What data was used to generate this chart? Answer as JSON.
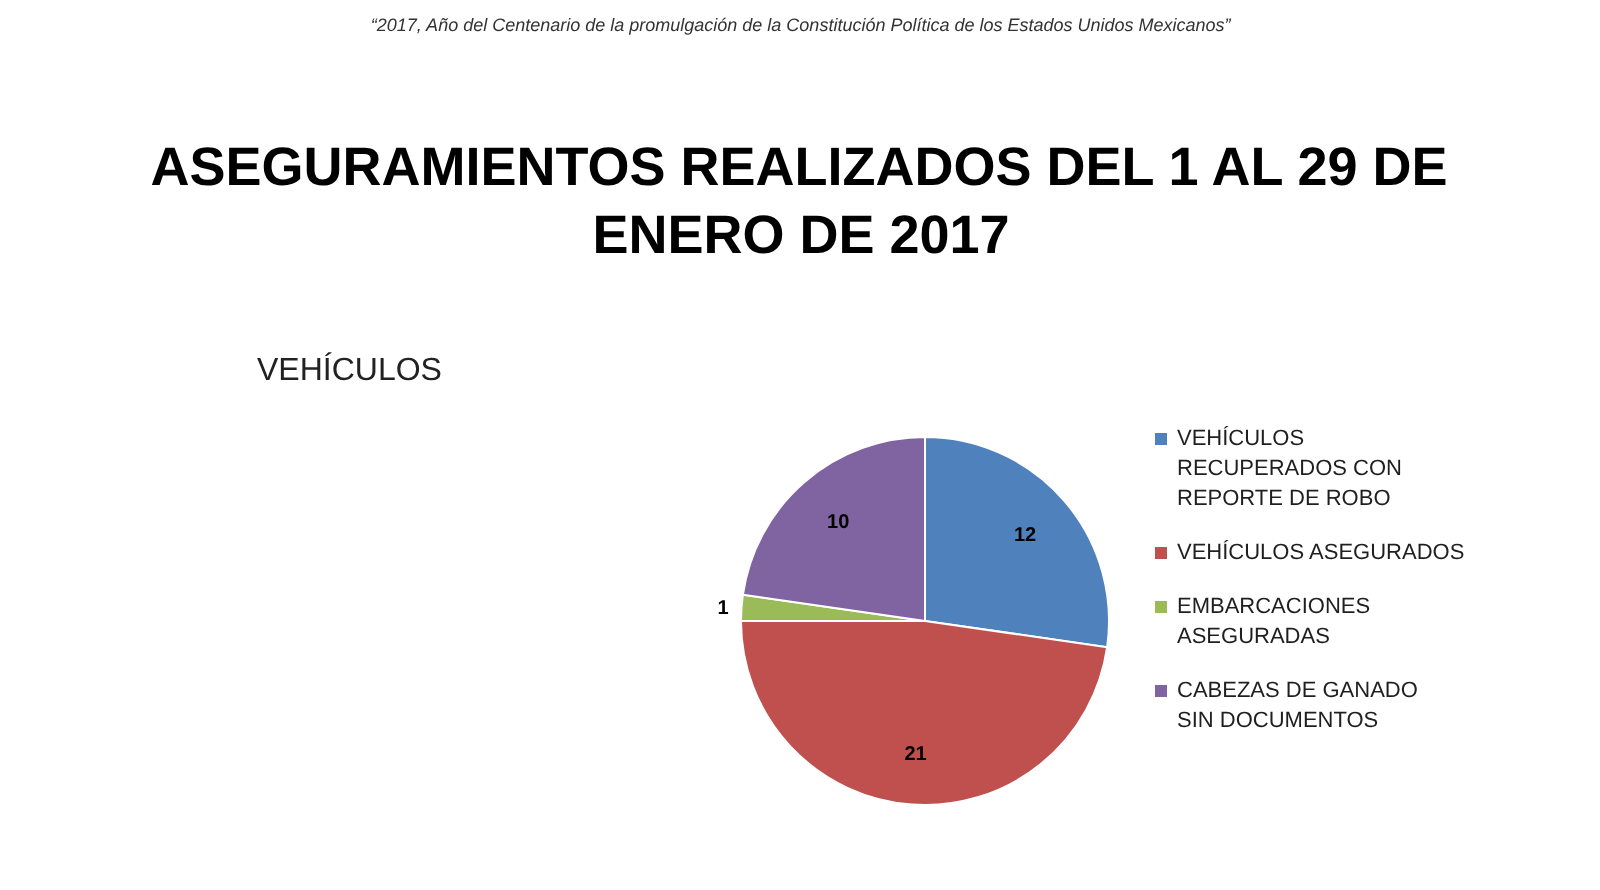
{
  "chart_data": {
    "type": "pie",
    "title": "ASEGURAMIENTOS REALIZADOS DEL 1 AL 29 DE ENERO DE 2017",
    "subtitle": "VEHÍCULOS",
    "annotations": [
      "“2017, Año del Centenario de la promulgación de la Constitución Política de los Estados Unidos Mexicanos”"
    ],
    "categories": [
      "VEHÍCULOS RECUPERADOS CON REPORTE DE ROBO",
      "VEHÍCULOS ASEGURADOS",
      "EMBARCACIONES ASEGURADAS",
      "CABEZAS DE GANADO SIN DOCUMENTOS"
    ],
    "values": [
      12,
      21,
      1,
      10
    ],
    "colors": [
      "#4f81bd",
      "#c0504d",
      "#9bbb59",
      "#8064a2"
    ],
    "data_labels": true,
    "legend": "right"
  }
}
